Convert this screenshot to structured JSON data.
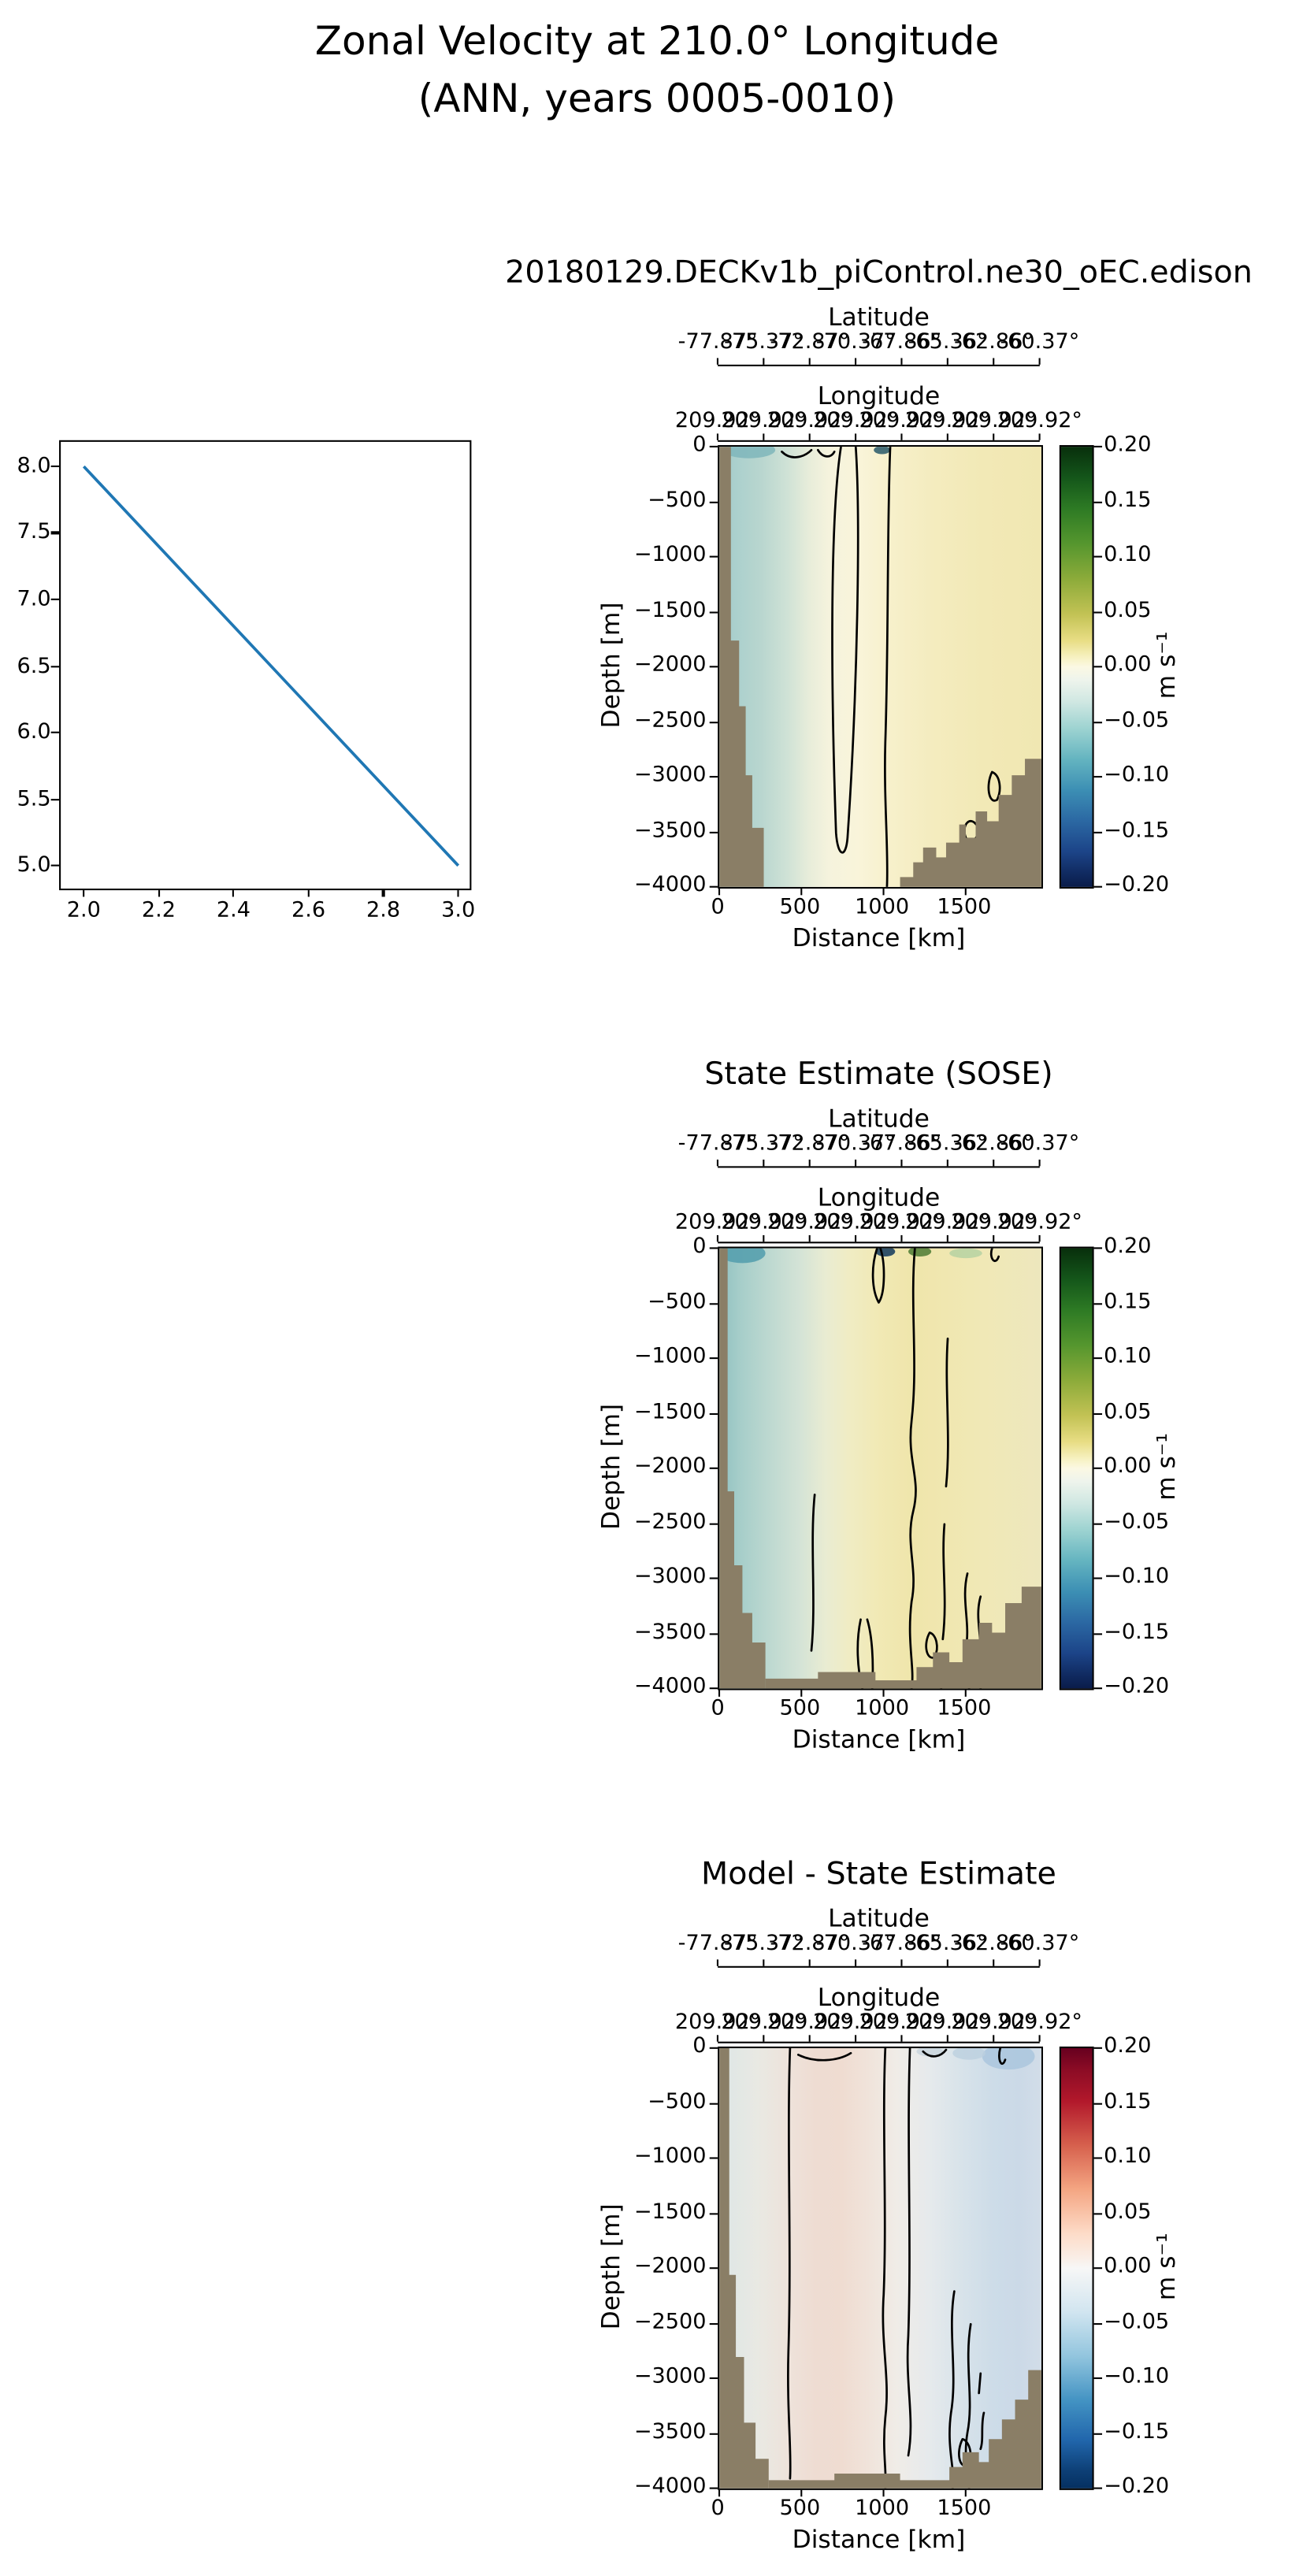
{
  "figure": {
    "title_line1": "Zonal Velocity at 210.0° Longitude",
    "title_line2": "(ANN, years 0005-0010)"
  },
  "line_plot": {
    "xticks": [
      "2.0",
      "2.2",
      "2.4",
      "2.6",
      "2.8",
      "3.0"
    ],
    "yticks": [
      "8.0",
      "7.5",
      "7.0",
      "6.5",
      "6.0",
      "5.5",
      "5.0"
    ],
    "line_color": "#1f77b4"
  },
  "axes": {
    "lat_label": "Latitude",
    "lat_ticks": [
      "-77.87°",
      "-75.37°",
      "-72.87°",
      "-70.37°",
      "-67.86°",
      "-65.36°",
      "-62.86°",
      "-60.37°"
    ],
    "lon_label": "Longitude",
    "lon_ticks": [
      "209.92°",
      "209.92°",
      "209.92°",
      "209.92°",
      "209.92°",
      "209.92°",
      "209.92°",
      "209.92°"
    ],
    "depth_label": "Depth [m]",
    "depth_ticks": [
      "0",
      "−500",
      "−1000",
      "−1500",
      "−2000",
      "−2500",
      "−3000",
      "−3500",
      "−4000"
    ],
    "distance_label": "Distance [km]",
    "distance_ticks": [
      "0",
      "500",
      "1000",
      "1500"
    ],
    "colorbar_label": "m s⁻¹",
    "colorbar_ticks": [
      "0.20",
      "0.15",
      "0.10",
      "0.05",
      "0.00",
      "−0.05",
      "−0.10",
      "−0.15",
      "−0.20"
    ]
  },
  "panels": [
    {
      "title": "20180129.DECKv1b_piControl.ne30_oEC.edison"
    },
    {
      "title": "State Estimate (SOSE)"
    },
    {
      "title": "Model - State Estimate"
    }
  ],
  "colors": {
    "land_mask": "#8a7e66",
    "contour_line": "#000000",
    "reference_line": "#1f77b4"
  },
  "chart_data": [
    {
      "type": "line",
      "x": [
        2.0,
        3.0
      ],
      "y": [
        8.0,
        5.0
      ],
      "xlim": [
        1.95,
        3.05
      ],
      "ylim": [
        4.85,
        8.15
      ],
      "xticks": [
        2.0,
        2.2,
        2.4,
        2.6,
        2.8,
        3.0
      ],
      "yticks": [
        5.0,
        5.5,
        6.0,
        6.5,
        7.0,
        7.5,
        8.0
      ],
      "series_color": "#1f77b4",
      "note": "Straight blue line descending from (2.0, 8.0) to (3.0, 5.0); no axis labels or title."
    },
    {
      "type": "heatmap",
      "title": "20180129.DECKv1b_piControl.ne30_oEC.edison",
      "xlabel": "Distance [km]",
      "ylabel": "Depth [m]",
      "x_range_km": [
        0,
        1960
      ],
      "y_range_m": [
        -4000,
        0
      ],
      "xticks": [
        0,
        500,
        1000,
        1500
      ],
      "yticks": [
        0,
        -500,
        -1000,
        -1500,
        -2000,
        -2500,
        -3000,
        -3500,
        -4000
      ],
      "top_axis_latitude": {
        "label": "Latitude",
        "ticks_deg": [
          -77.87,
          -75.37,
          -72.87,
          -70.37,
          -67.86,
          -65.36,
          -62.86,
          -60.37
        ]
      },
      "top_axis_longitude": {
        "label": "Longitude",
        "ticks_deg": [
          209.92,
          209.92,
          209.92,
          209.92,
          209.92,
          209.92,
          209.92,
          209.92
        ]
      },
      "colorbar": {
        "label": "m s⁻¹",
        "range": [
          -0.2,
          0.2
        ],
        "ticks": [
          0.2,
          0.15,
          0.1,
          0.05,
          0.0,
          -0.05,
          -0.1,
          -0.15,
          -0.2
        ],
        "colormap": "dark navy (−0.20) → blue → teal → cream (0.00) → yellow → olive → dark green (+0.20)"
      },
      "approx_field": "Zonal velocity ≈ −0.02 to −0.05 m/s (teal band) within ~0–350 km of the western end; ≈ 0 m/s cream mid-section with a tall narrow zero-contour loop near 600–900 km reaching ~3700 m depth and a full-depth zero contour near 1000 km; ≈ +0.02 to +0.05 m/s (pale yellow) from ~1050–1950 km; brown land/bathymetry mask along the left wall and a sea floor rising eastward from ~1100 km up to ~2900 m depth at the right edge, with small contour loops over the ridge near 1600–1750 km."
    },
    {
      "type": "heatmap",
      "title": "State Estimate (SOSE)",
      "xlabel": "Distance [km]",
      "ylabel": "Depth [m]",
      "x_range_km": [
        0,
        1960
      ],
      "y_range_m": [
        -4000,
        0
      ],
      "xticks": [
        0,
        500,
        1000,
        1500
      ],
      "yticks": [
        0,
        -500,
        -1000,
        -1500,
        -2000,
        -2500,
        -3000,
        -3500,
        -4000
      ],
      "top_axis_latitude": {
        "label": "Latitude",
        "ticks_deg": [
          -77.87,
          -75.37,
          -72.87,
          -70.37,
          -67.86,
          -65.36,
          -62.86,
          -60.37
        ]
      },
      "top_axis_longitude": {
        "label": "Longitude",
        "ticks_deg": [
          209.92,
          209.92,
          209.92,
          209.92,
          209.92,
          209.92,
          209.92,
          209.92
        ]
      },
      "colorbar": {
        "label": "m s⁻¹",
        "range": [
          -0.2,
          0.2
        ],
        "ticks": [
          0.2,
          0.15,
          0.1,
          0.05,
          0.0,
          -0.05,
          -0.1,
          -0.15,
          -0.2
        ],
        "colormap": "dark navy (−0.20) → blue → teal → cream (0.00) → yellow → olive → dark green (+0.20)"
      },
      "approx_field": "SOSE zonal velocity ≈ −0.03 m/s (teal) west of ~550 km with a darker teal/blue patch at the surface near the western boundary; wavy full-depth zero contour near ~1150 km with additional broken zero contours near 1300–1600 km; ≈ +0.03 to +0.05 m/s (yellow) between ~950–1500 km; small dark-blue and green extrema at the surface near 1000–1250 km; brown bathymetry along the left wall, across the bottom, and rising eastward to ~3100 m depth at the right edge."
    },
    {
      "type": "heatmap",
      "title": "Model - State Estimate",
      "xlabel": "Distance [km]",
      "ylabel": "Depth [m]",
      "x_range_km": [
        0,
        1960
      ],
      "y_range_m": [
        -4000,
        0
      ],
      "xticks": [
        0,
        500,
        1000,
        1500
      ],
      "yticks": [
        0,
        -500,
        -1000,
        -1500,
        -2000,
        -2500,
        -3000,
        -3500,
        -4000
      ],
      "top_axis_latitude": {
        "label": "Latitude",
        "ticks_deg": [
          -77.87,
          -75.37,
          -72.87,
          -70.37,
          -67.86,
          -65.36,
          -62.86,
          -60.37
        ]
      },
      "top_axis_longitude": {
        "label": "Longitude",
        "ticks_deg": [
          209.92,
          209.92,
          209.92,
          209.92,
          209.92,
          209.92,
          209.92,
          209.92
        ]
      },
      "colorbar": {
        "label": "m s⁻¹",
        "range": [
          -0.2,
          0.2
        ],
        "ticks": [
          0.2,
          0.15,
          0.1,
          0.05,
          0.0,
          -0.05,
          -0.1,
          -0.15,
          -0.2
        ],
        "colormap": "RdBu-style: dark navy (−0.20) → blue → light blue → white (0.00) → light red → red → dark maroon (+0.20)"
      },
      "approx_field": "Model minus SOSE ≈ +0.02 m/s (pale red) between ~400–900 km at all depths; near zero (white) elsewhere in the west; ≈ −0.02 to −0.05 m/s (pale blue, strongest near the surface at ~1600–1850 km) east of ~1200 km; full-depth zero contours near ~420, ~1000 and ~1150 km with a dense tangle of zero contours near 1400–1600 km below 1500 m; brown bathymetry mask on the left wall, bottom, and eastern rise."
    }
  ]
}
